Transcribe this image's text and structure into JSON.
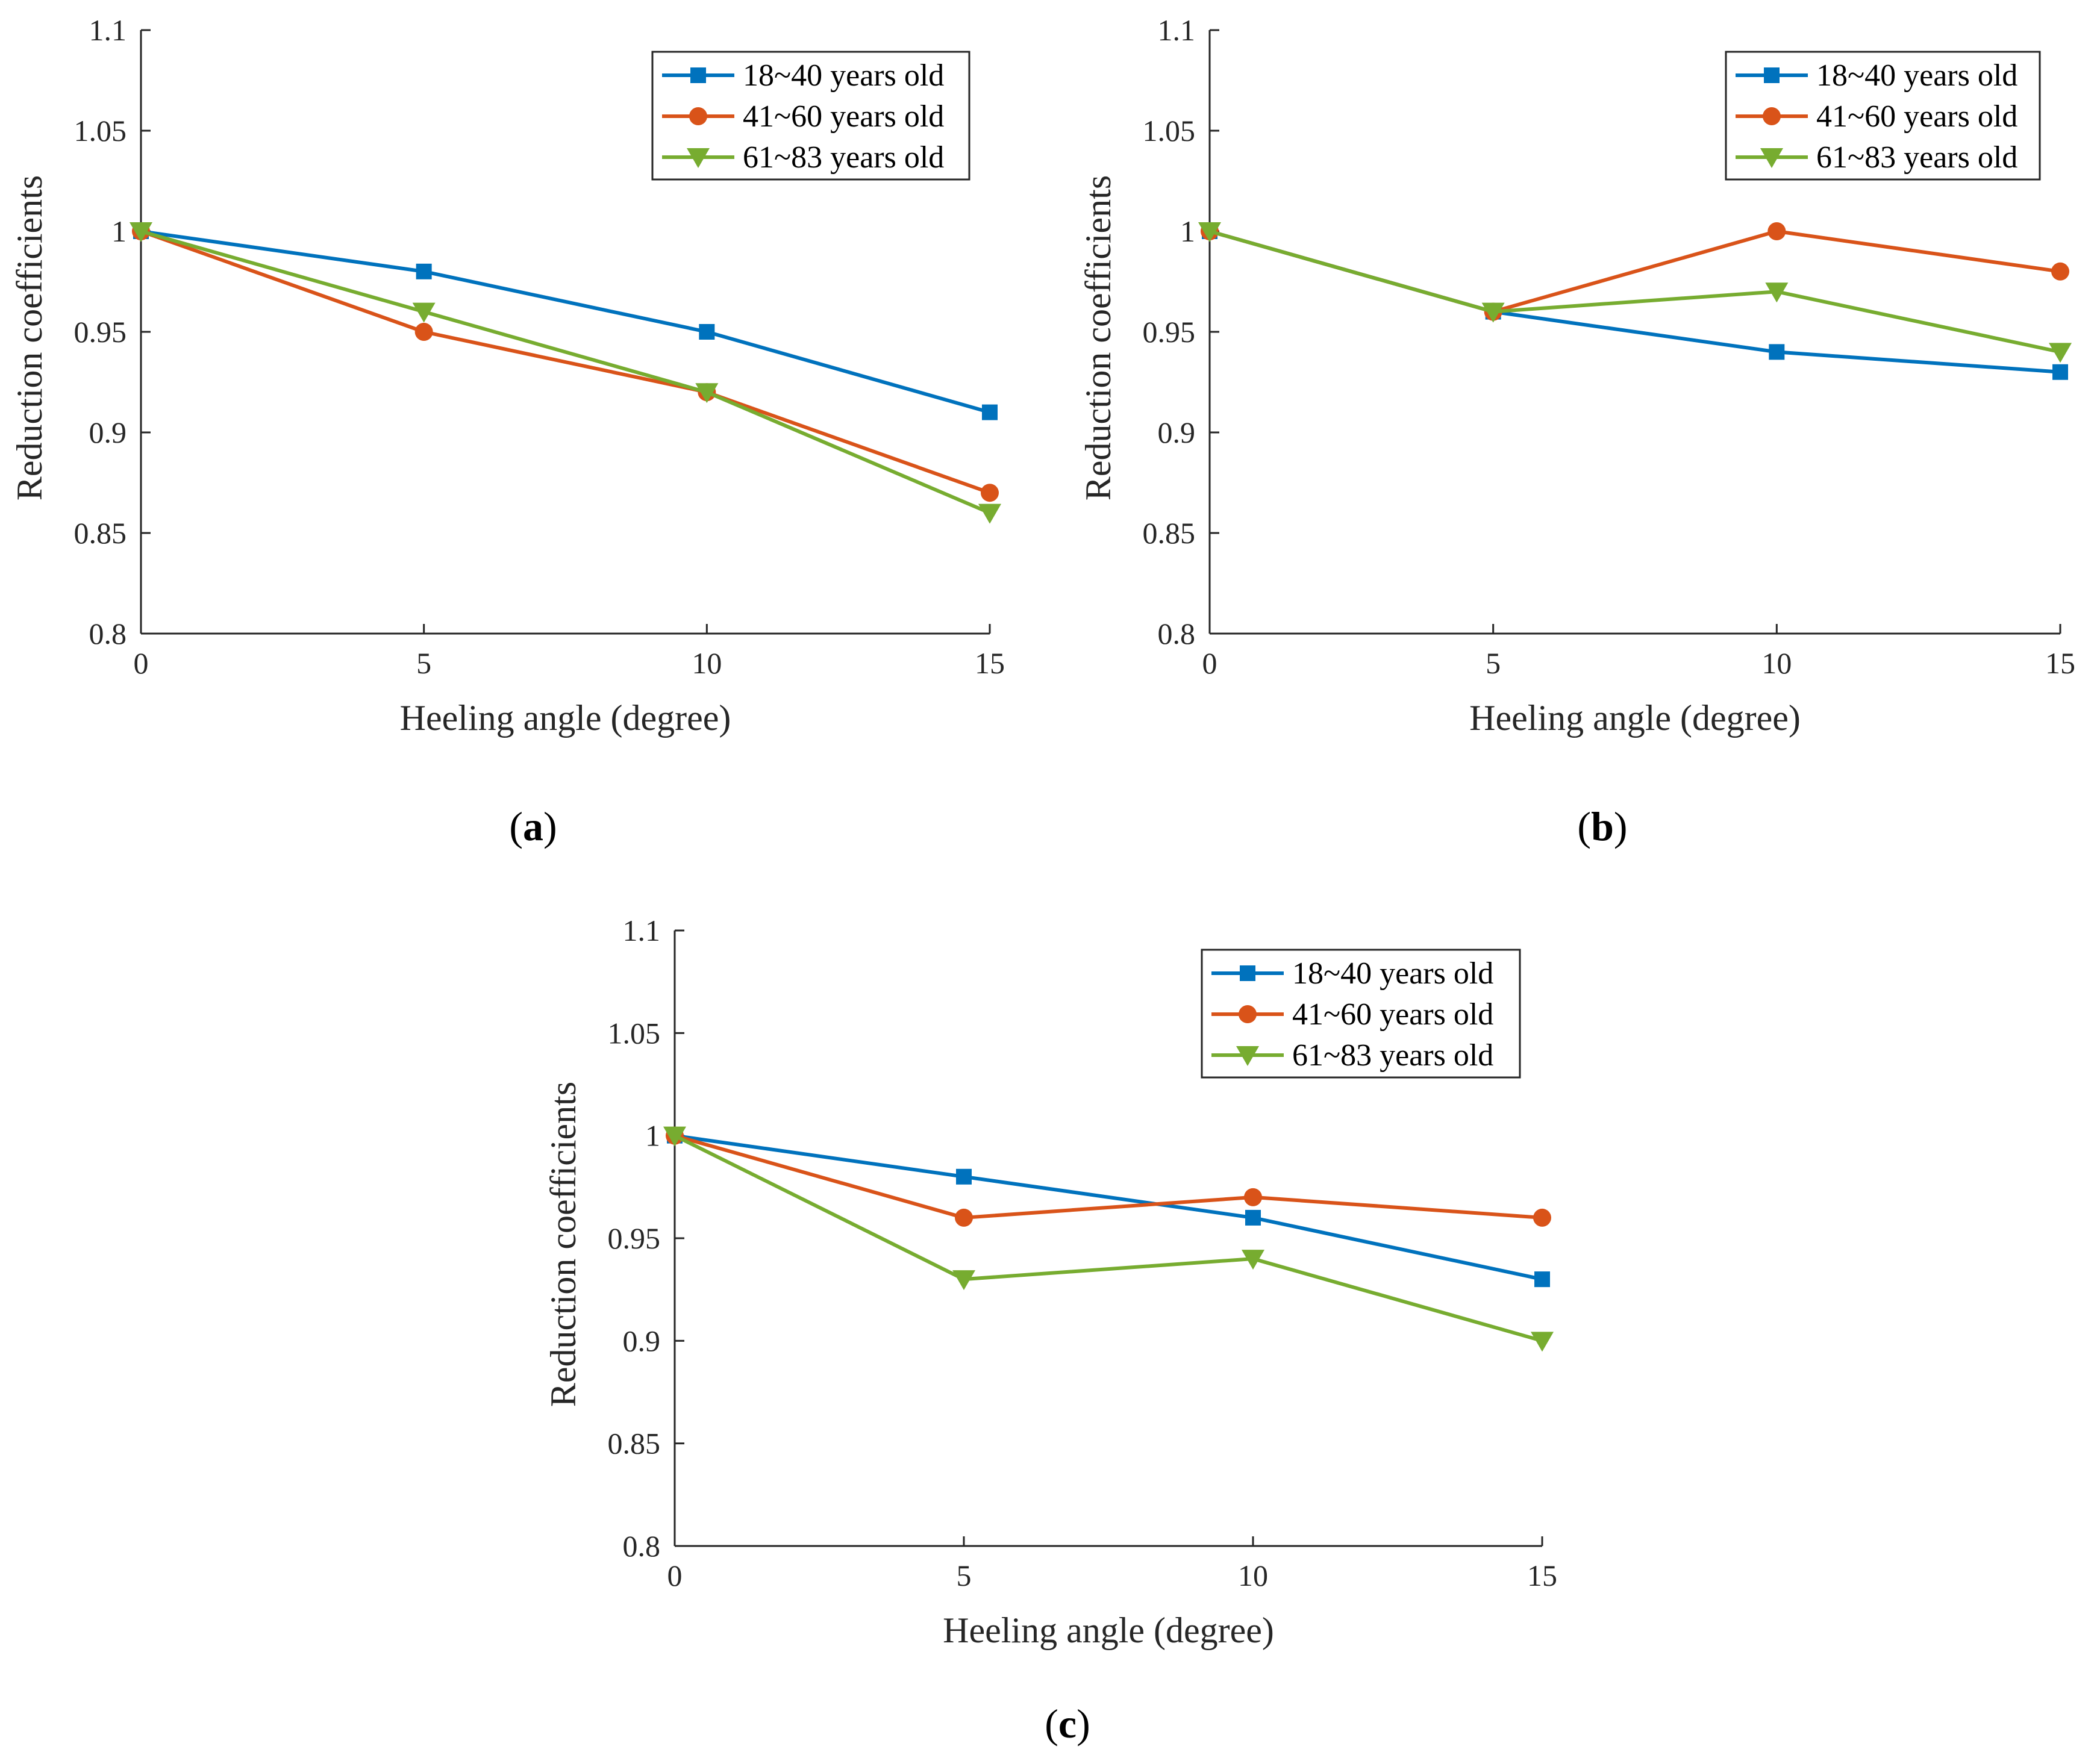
{
  "chart_data": [
    {
      "type": "line",
      "panel_label": "a",
      "xlabel": "Heeling angle (degree)",
      "ylabel": "Reduction coefficients",
      "x": [
        0,
        5,
        10,
        15
      ],
      "xlim": [
        0,
        15
      ],
      "ylim": [
        0.8,
        1.1
      ],
      "xticks": [
        "0",
        "5",
        "10",
        "15"
      ],
      "yticks": [
        "0.8",
        "0.85",
        "0.9",
        "0.95",
        "1",
        "1.05",
        "1.1"
      ],
      "legend_position": "top-right",
      "grid": false,
      "series": [
        {
          "name": "18~40 years old",
          "color": "#0072BD",
          "marker": "square",
          "values": [
            1.0,
            0.98,
            0.95,
            0.91
          ]
        },
        {
          "name": "41~60 years old",
          "color": "#D95319",
          "marker": "circle",
          "values": [
            1.0,
            0.95,
            0.92,
            0.87
          ]
        },
        {
          "name": "61~83 years old",
          "color": "#77AC30",
          "marker": "triangle-down",
          "values": [
            1.0,
            0.96,
            0.92,
            0.86
          ]
        }
      ]
    },
    {
      "type": "line",
      "panel_label": "b",
      "xlabel": "Heeling angle (degree)",
      "ylabel": "Reduction coefficients",
      "x": [
        0,
        5,
        10,
        15
      ],
      "xlim": [
        0,
        15
      ],
      "ylim": [
        0.8,
        1.1
      ],
      "xticks": [
        "0",
        "5",
        "10",
        "15"
      ],
      "yticks": [
        "0.8",
        "0.85",
        "0.9",
        "0.95",
        "1",
        "1.05",
        "1.1"
      ],
      "legend_position": "top-right",
      "grid": false,
      "series": [
        {
          "name": "18~40 years old",
          "color": "#0072BD",
          "marker": "square",
          "values": [
            1.0,
            0.96,
            0.94,
            0.93
          ]
        },
        {
          "name": "41~60 years old",
          "color": "#D95319",
          "marker": "circle",
          "values": [
            1.0,
            0.96,
            1.0,
            0.98
          ]
        },
        {
          "name": "61~83 years old",
          "color": "#77AC30",
          "marker": "triangle-down",
          "values": [
            1.0,
            0.96,
            0.97,
            0.94
          ]
        }
      ]
    },
    {
      "type": "line",
      "panel_label": "c",
      "xlabel": "Heeling angle (degree)",
      "ylabel": "Reduction coefficients",
      "x": [
        0,
        5,
        10,
        15
      ],
      "xlim": [
        0,
        15
      ],
      "ylim": [
        0.8,
        1.1
      ],
      "xticks": [
        "0",
        "5",
        "10",
        "15"
      ],
      "yticks": [
        "0.8",
        "0.85",
        "0.9",
        "0.95",
        "1",
        "1.05",
        "1.1"
      ],
      "legend_position": "top-right",
      "grid": false,
      "series": [
        {
          "name": "18~40 years old",
          "color": "#0072BD",
          "marker": "square",
          "values": [
            1.0,
            0.98,
            0.96,
            0.93
          ]
        },
        {
          "name": "41~60 years old",
          "color": "#D95319",
          "marker": "circle",
          "values": [
            1.0,
            0.96,
            0.97,
            0.96
          ]
        },
        {
          "name": "61~83 years old",
          "color": "#77AC30",
          "marker": "triangle-down",
          "values": [
            1.0,
            0.93,
            0.94,
            0.9
          ]
        }
      ]
    }
  ]
}
